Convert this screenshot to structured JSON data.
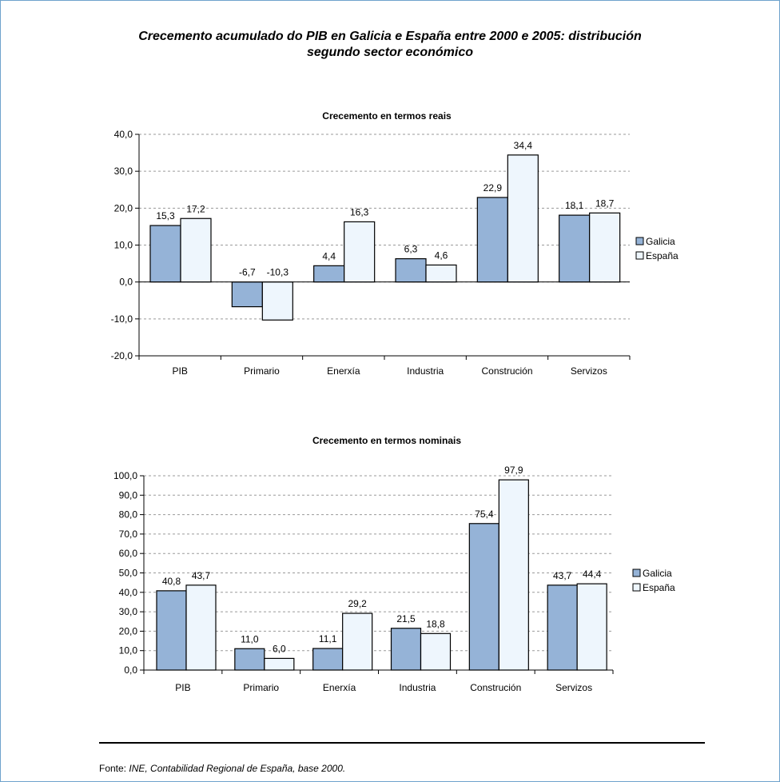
{
  "title_line1": "Crecemento acumulado do PIB en Galicia e España entre 2000 e 2005: distribución",
  "title_line2": "segundo sector económico",
  "colors": {
    "galicia": "#95b3d7",
    "espana": "#eef6fd",
    "border": "#6fa3cc"
  },
  "chart_data": [
    {
      "type": "bar",
      "title": "Crecemento en termos reais",
      "categories": [
        "PIB",
        "Primario",
        "Enerxía",
        "Industria",
        "Construción",
        "Servizos"
      ],
      "series": [
        {
          "name": "Galicia",
          "values": [
            15.3,
            -6.7,
            4.4,
            6.3,
            22.9,
            18.1
          ]
        },
        {
          "name": "España",
          "values": [
            17.2,
            -10.3,
            16.3,
            4.6,
            34.4,
            18.7
          ]
        }
      ],
      "value_labels": [
        [
          "15,3",
          "-6,7",
          "4,4",
          "6,3",
          "22,9",
          "18,1"
        ],
        [
          "17,2",
          "-10,3",
          "16,3",
          "4,6",
          "34,4",
          "18,7"
        ]
      ],
      "yticks": [
        "40,0",
        "30,0",
        "20,0",
        "10,0",
        "0,0",
        "-10,0",
        "-20,0"
      ],
      "ylim": [
        -20,
        40
      ],
      "grid": true,
      "legend": "right"
    },
    {
      "type": "bar",
      "title": "Crecemento en termos nominais",
      "categories": [
        "PIB",
        "Primario",
        "Enerxía",
        "Industria",
        "Construción",
        "Servizos"
      ],
      "series": [
        {
          "name": "Galicia",
          "values": [
            40.8,
            11.0,
            11.1,
            21.5,
            75.4,
            43.7
          ]
        },
        {
          "name": "España",
          "values": [
            43.7,
            6.0,
            29.2,
            18.8,
            97.9,
            44.4
          ]
        }
      ],
      "value_labels": [
        [
          "40,8",
          "11,0",
          "11,1",
          "21,5",
          "75,4",
          "43,7"
        ],
        [
          "43,7",
          "6,0",
          "29,2",
          "18,8",
          "97,9",
          "44,4"
        ]
      ],
      "yticks": [
        "100,0",
        "90,0",
        "80,0",
        "70,0",
        "60,0",
        "50,0",
        "40,0",
        "30,0",
        "20,0",
        "10,0",
        "0,0"
      ],
      "ylim": [
        0,
        100
      ],
      "grid": true,
      "legend": "right"
    }
  ],
  "source": {
    "prefix": "Fonte: ",
    "text": "INE, Contabilidad Regional de España, base 2000."
  }
}
